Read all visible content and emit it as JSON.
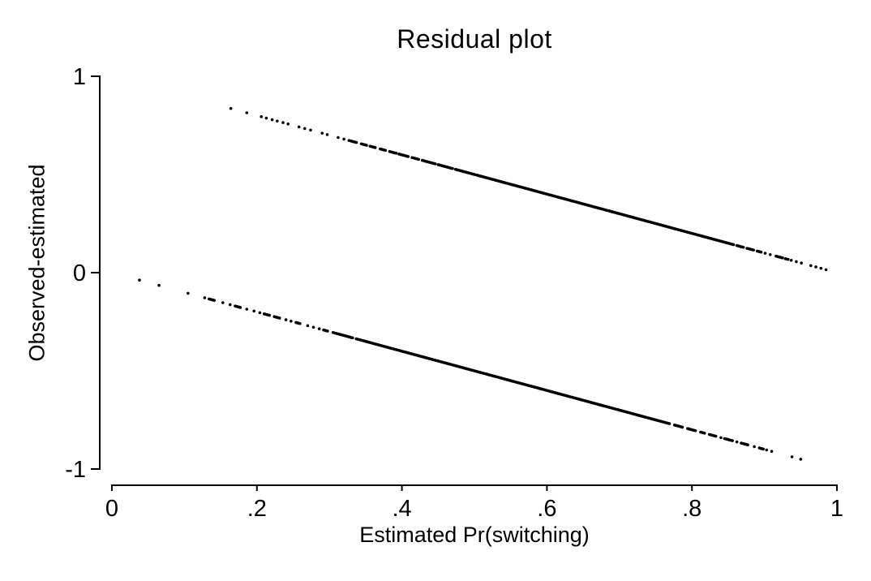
{
  "figure": {
    "background_color": "#ffffff",
    "foreground_color": "#000000"
  },
  "chart_data": {
    "type": "scatter",
    "title": "Residual plot",
    "xlabel": "Estimated Pr(switching)",
    "ylabel": "Observed-estimated",
    "xlim": [
      0,
      1
    ],
    "ylim": [
      -1,
      1
    ],
    "grid": false,
    "legend": "none",
    "x_ticks": [
      {
        "v": 0,
        "label": "0"
      },
      {
        "v": 0.2,
        "label": ".2"
      },
      {
        "v": 0.4,
        "label": ".4"
      },
      {
        "v": 0.6,
        "label": ".6"
      },
      {
        "v": 0.8,
        "label": ".8"
      },
      {
        "v": 1,
        "label": "1"
      }
    ],
    "y_ticks": [
      {
        "v": 1,
        "label": "1"
      },
      {
        "v": 0,
        "label": "0"
      },
      {
        "v": -1,
        "label": "-1"
      }
    ],
    "marker": {
      "shape": "dot",
      "color": "#000000",
      "radius_px": 1.8,
      "run_step": 0.0018
    },
    "series": [
      {
        "name": "residuals-observed-1",
        "relation": "y = 1 - x",
        "slope": -1,
        "intercept": 1,
        "x_range": [
          0.164,
          0.985
        ],
        "dots": [
          0.164,
          0.186,
          0.206,
          0.213,
          0.221,
          0.228,
          0.236,
          0.243,
          0.258,
          0.266,
          0.274,
          0.29,
          0.297,
          0.312,
          0.32,
          0.327,
          0.901,
          0.908,
          0.937,
          0.944,
          0.951,
          0.964,
          0.971,
          0.978,
          0.985
        ],
        "runs": [
          [
            0.33,
            0.338
          ],
          [
            0.344,
            0.352
          ],
          [
            0.356,
            0.364
          ],
          [
            0.37,
            0.378
          ],
          [
            0.383,
            0.392
          ],
          [
            0.396,
            0.41
          ],
          [
            0.414,
            0.424
          ],
          [
            0.428,
            0.446
          ],
          [
            0.45,
            0.47
          ],
          [
            0.474,
            0.858
          ],
          [
            0.862,
            0.872
          ],
          [
            0.876,
            0.886
          ],
          [
            0.89,
            0.897
          ],
          [
            0.916,
            0.925
          ],
          [
            0.929,
            0.934
          ]
        ]
      },
      {
        "name": "residuals-observed-0",
        "relation": "y = -x",
        "slope": -1,
        "intercept": 0,
        "x_range": [
          0.038,
          0.95
        ],
        "dots": [
          0.038,
          0.065,
          0.105,
          0.128,
          0.153,
          0.163,
          0.186,
          0.196,
          0.204,
          0.24,
          0.247,
          0.27,
          0.278,
          0.286,
          0.84,
          0.862,
          0.886,
          0.903,
          0.91,
          0.938,
          0.95
        ],
        "runs": [
          [
            0.134,
            0.142
          ],
          [
            0.17,
            0.178
          ],
          [
            0.21,
            0.218
          ],
          [
            0.224,
            0.232
          ],
          [
            0.254,
            0.261
          ],
          [
            0.292,
            0.299
          ],
          [
            0.305,
            0.333
          ],
          [
            0.337,
            0.77
          ],
          [
            0.776,
            0.788
          ],
          [
            0.794,
            0.806
          ],
          [
            0.812,
            0.818
          ],
          [
            0.824,
            0.834
          ],
          [
            0.845,
            0.856
          ],
          [
            0.868,
            0.878
          ],
          [
            0.893,
            0.9
          ]
        ]
      }
    ]
  }
}
